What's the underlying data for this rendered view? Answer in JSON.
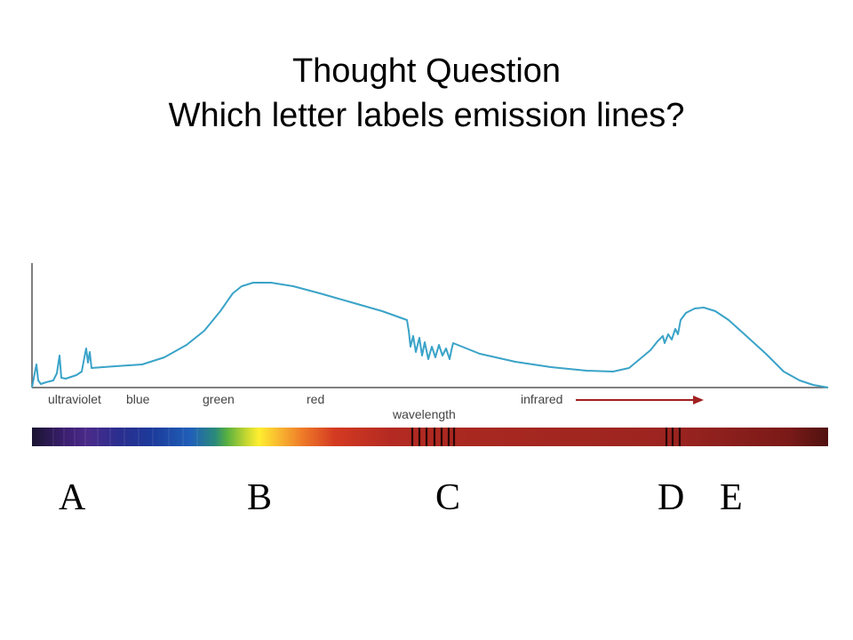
{
  "slide": {
    "title_line1": "Thought Question",
    "title_line2": "Which letter labels emission lines?"
  },
  "figure": {
    "band_labels": {
      "ultraviolet": "ultraviolet",
      "blue": "blue",
      "green": "green",
      "red": "red",
      "infrared": "infrared"
    },
    "axis_label": "wavelength",
    "curve_color": "#3aa3c8",
    "arrow_color": "#a02020"
  },
  "options": {
    "a": "A",
    "b": "B",
    "c": "C",
    "d": "D",
    "e": "E"
  }
}
